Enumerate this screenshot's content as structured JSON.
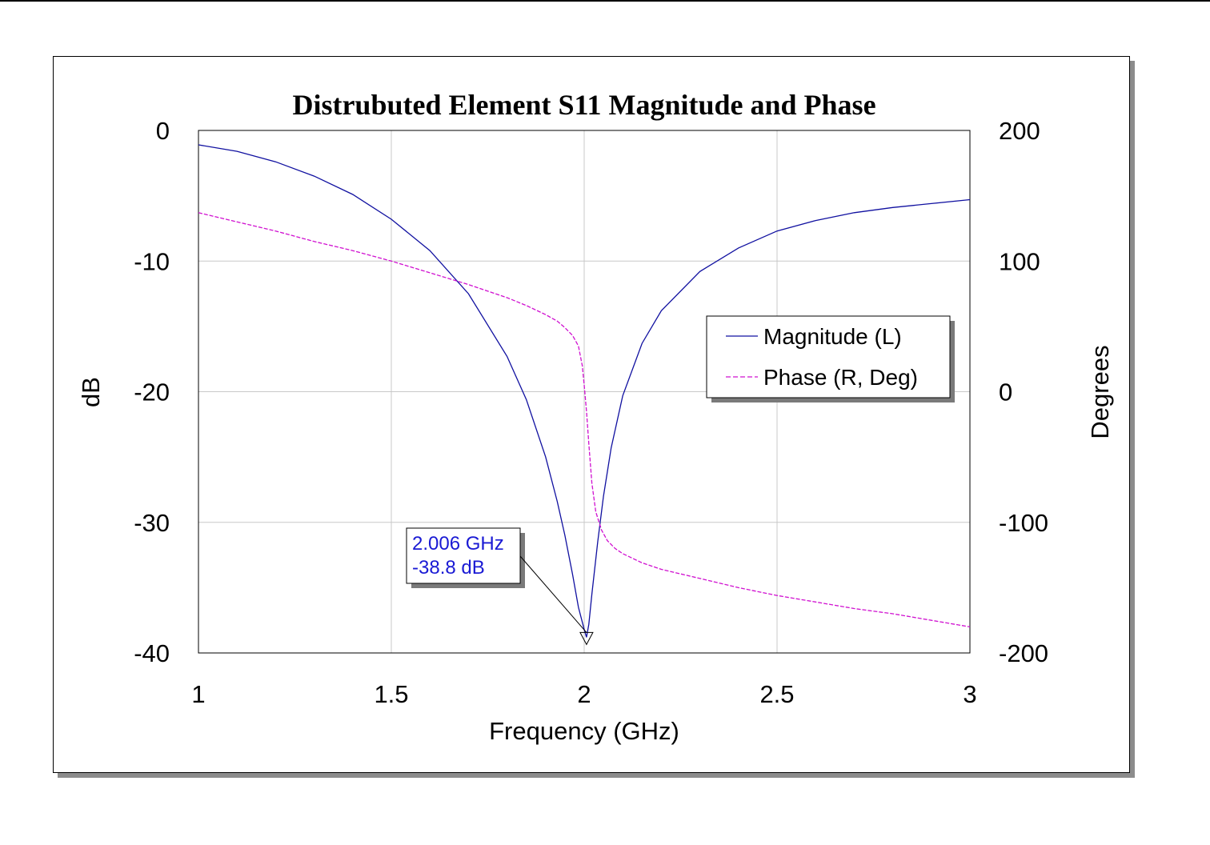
{
  "chart_data": {
    "type": "line",
    "title": "Distrubuted Element S11 Magnitude and Phase",
    "xlabel": "Frequency (GHz)",
    "ylabel": "dB",
    "y2label": "Degrees",
    "xlim": [
      1,
      3
    ],
    "ylim": [
      -40,
      0
    ],
    "y2lim": [
      -200,
      200
    ],
    "x_ticks": [
      "1",
      "1.5",
      "2",
      "2.5",
      "3"
    ],
    "y_ticks": [
      "0",
      "-10",
      "-20",
      "-30",
      "-40"
    ],
    "y2_ticks": [
      "200",
      "100",
      "0",
      "-100",
      "-200"
    ],
    "grid": true,
    "legend_position": "center-right",
    "series": [
      {
        "name": "Magnitude (L)",
        "axis": "left",
        "color": "#1010a0",
        "x": [
          1.0,
          1.1,
          1.2,
          1.3,
          1.4,
          1.5,
          1.6,
          1.7,
          1.8,
          1.85,
          1.9,
          1.93,
          1.95,
          1.97,
          1.985,
          2.0,
          2.006,
          2.012,
          2.02,
          2.035,
          2.05,
          2.07,
          2.1,
          2.15,
          2.2,
          2.3,
          2.4,
          2.5,
          2.6,
          2.7,
          2.8,
          2.9,
          3.0
        ],
        "values": [
          -1.1,
          -1.6,
          -2.4,
          -3.5,
          -4.9,
          -6.8,
          -9.2,
          -12.5,
          -17.3,
          -20.6,
          -25.0,
          -28.4,
          -31.0,
          -34.0,
          -36.5,
          -38.2,
          -38.8,
          -37.8,
          -35.5,
          -31.5,
          -28.0,
          -24.3,
          -20.3,
          -16.3,
          -13.8,
          -10.8,
          -9.0,
          -7.7,
          -6.9,
          -6.3,
          -5.9,
          -5.6,
          -5.3
        ]
      },
      {
        "name": "Phase (R, Deg)",
        "axis": "right",
        "color": "#d010d0",
        "x": [
          1.0,
          1.1,
          1.2,
          1.3,
          1.4,
          1.5,
          1.6,
          1.7,
          1.8,
          1.85,
          1.9,
          1.93,
          1.95,
          1.97,
          1.985,
          1.995,
          2.0,
          2.006,
          2.012,
          2.02,
          2.03,
          2.045,
          2.06,
          2.08,
          2.1,
          2.15,
          2.2,
          2.3,
          2.4,
          2.5,
          2.6,
          2.7,
          2.8,
          2.9,
          3.0
        ],
        "values": [
          137,
          130,
          123,
          115,
          108,
          100,
          91,
          82,
          72,
          66,
          59,
          54,
          49,
          43,
          35,
          20,
          5,
          -15,
          -40,
          -70,
          -92,
          -106,
          -114,
          -120,
          -124,
          -131,
          -136,
          -143,
          -150,
          -156,
          -161,
          -166,
          -170,
          -175,
          -180
        ]
      }
    ],
    "annotation": {
      "x": 2.006,
      "y": -38.8,
      "line1": "2.006 GHz",
      "line2": "-38.8 dB"
    }
  }
}
